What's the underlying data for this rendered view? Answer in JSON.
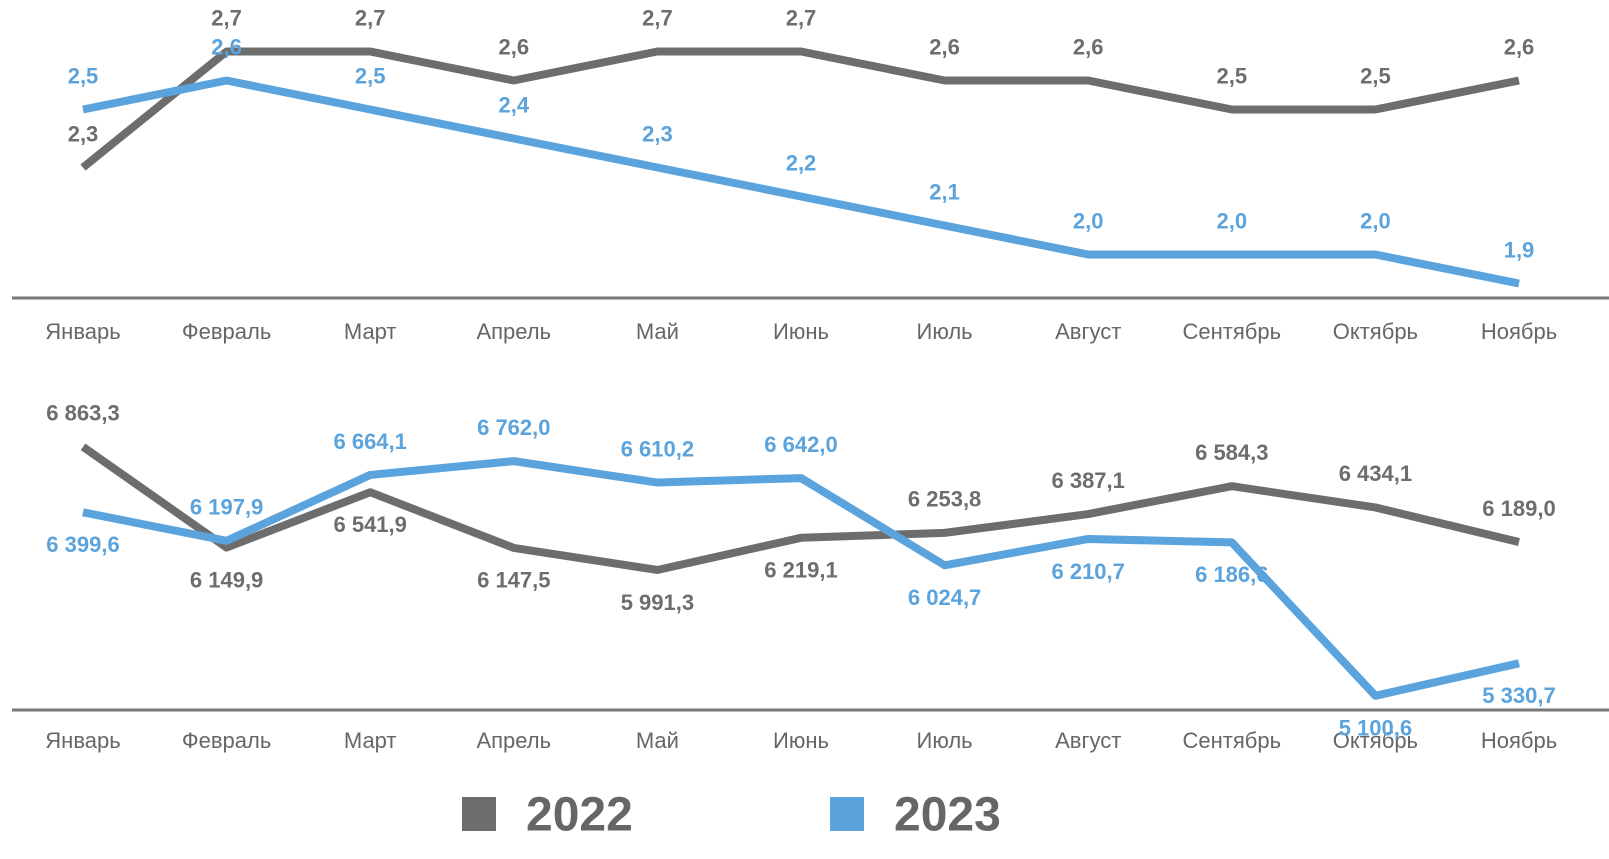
{
  "chart_data": [
    {
      "type": "line",
      "categories": [
        "Январь",
        "Февраль",
        "Март",
        "Апрель",
        "Май",
        "Июнь",
        "Июль",
        "Август",
        "Сентябрь",
        "Октябрь",
        "Ноябрь"
      ],
      "ylim": [
        1.85,
        2.85
      ],
      "series": [
        {
          "name": "2022",
          "color": "#6d6d6d",
          "values": [
            2.3,
            2.7,
            2.7,
            2.6,
            2.7,
            2.7,
            2.6,
            2.6,
            2.5,
            2.5,
            2.6
          ],
          "value_labels": [
            "2,3",
            "2,7",
            "2,7",
            "2,6",
            "2,7",
            "2,7",
            "2,6",
            "2,6",
            "2,5",
            "2,5",
            "2,6"
          ]
        },
        {
          "name": "2023",
          "color": "#5ba3dc",
          "values": [
            2.5,
            2.6,
            2.5,
            2.4,
            2.3,
            2.2,
            2.1,
            2.0,
            2.0,
            2.0,
            1.9
          ],
          "value_labels": [
            "2,5",
            "2,6",
            "2,5",
            "2,4",
            "2,3",
            "2,2",
            "2,1",
            "2,0",
            "2,0",
            "2,0",
            "1,9"
          ]
        }
      ]
    },
    {
      "type": "line",
      "categories": [
        "Январь",
        "Февраль",
        "Март",
        "Апрель",
        "Май",
        "Июнь",
        "Июль",
        "Август",
        "Сентябрь",
        "Октябрь",
        "Ноябрь"
      ],
      "ylim": [
        5000,
        7000
      ],
      "series": [
        {
          "color": "#6d6d6d",
          "values": [
            6863.3,
            6149.9,
            6541.9,
            6147.5,
            5991.3,
            6219.1,
            6253.8,
            6387.1,
            6584.3,
            6434.1,
            6189.0
          ],
          "value_labels": [
            "6 863,3",
            "6 149,9",
            "6 541,9",
            "6 147,5",
            "5 991,3",
            "6 219,1",
            "6 253,8",
            "6 387,1",
            "6 584,3",
            "6 434,1",
            "6 189,0"
          ]
        },
        {
          "color": "#5ba3dc",
          "values": [
            6399.6,
            6197.9,
            6664.1,
            6762.0,
            6610.2,
            6642.0,
            6024.7,
            6210.7,
            6186.6,
            5100.6,
            5330.7
          ],
          "value_labels": [
            "6 399,6",
            "6 197,9",
            "6 664,1",
            "6 762,0",
            "6 610,2",
            "6 642,0",
            "6 024,7",
            "6 210,7",
            "6 186,6",
            "5 100,6",
            "5 330,7"
          ]
        }
      ]
    }
  ]
}
